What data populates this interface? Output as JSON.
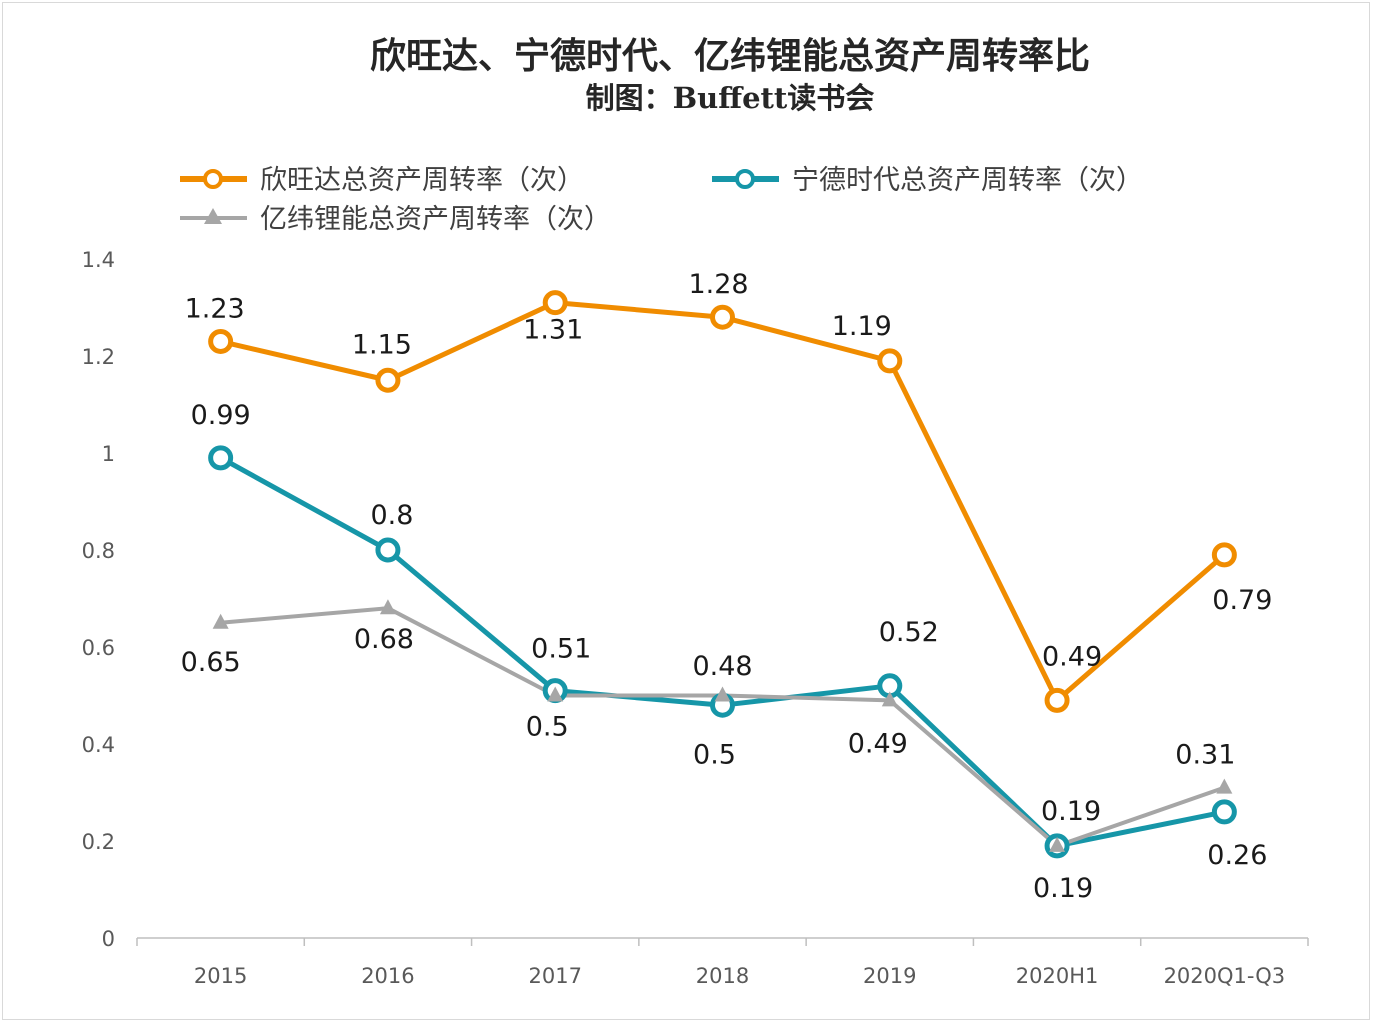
{
  "chart_data": {
    "type": "line",
    "title": "欣旺达、宁德时代、亿纬锂能总资产周转率比",
    "subtitle": "制图：Buffett读书会",
    "categories": [
      "2015",
      "2016",
      "2017",
      "2018",
      "2019",
      "2020H1",
      "2020Q1-Q3"
    ],
    "ylim": [
      0,
      1.4
    ],
    "yticks": [
      "0",
      "0.2",
      "0.4",
      "0.6",
      "0.8",
      "1",
      "1.2",
      "1.4"
    ],
    "grid": false,
    "legend_position": "top",
    "series": [
      {
        "name": "欣旺达总资产周转率（次）",
        "color": "#F08C00",
        "marker": "hollow-circle",
        "values": [
          1.23,
          1.15,
          1.31,
          1.28,
          1.19,
          0.49,
          0.79
        ],
        "labels": [
          "1.23",
          "1.15",
          "1.31",
          "1.28",
          "1.19",
          "0.49",
          "0.79"
        ]
      },
      {
        "name": "宁德时代总资产周转率（次）",
        "color": "#1696A8",
        "marker": "hollow-circle",
        "values": [
          0.99,
          0.8,
          0.51,
          0.48,
          0.52,
          0.19,
          0.26
        ],
        "labels": [
          "0.99",
          "0.8",
          "0.51",
          "0.48",
          "0.52",
          "0.19",
          "0.26"
        ]
      },
      {
        "name": "亿纬锂能总资产周转率（次）",
        "color": "#A6A6A6",
        "marker": "triangle",
        "values": [
          0.65,
          0.68,
          0.5,
          0.5,
          0.49,
          0.19,
          0.31
        ],
        "labels": [
          "0.65",
          "0.68",
          "0.5",
          "0.5",
          "0.49",
          "0.19",
          "0.31"
        ]
      }
    ]
  }
}
